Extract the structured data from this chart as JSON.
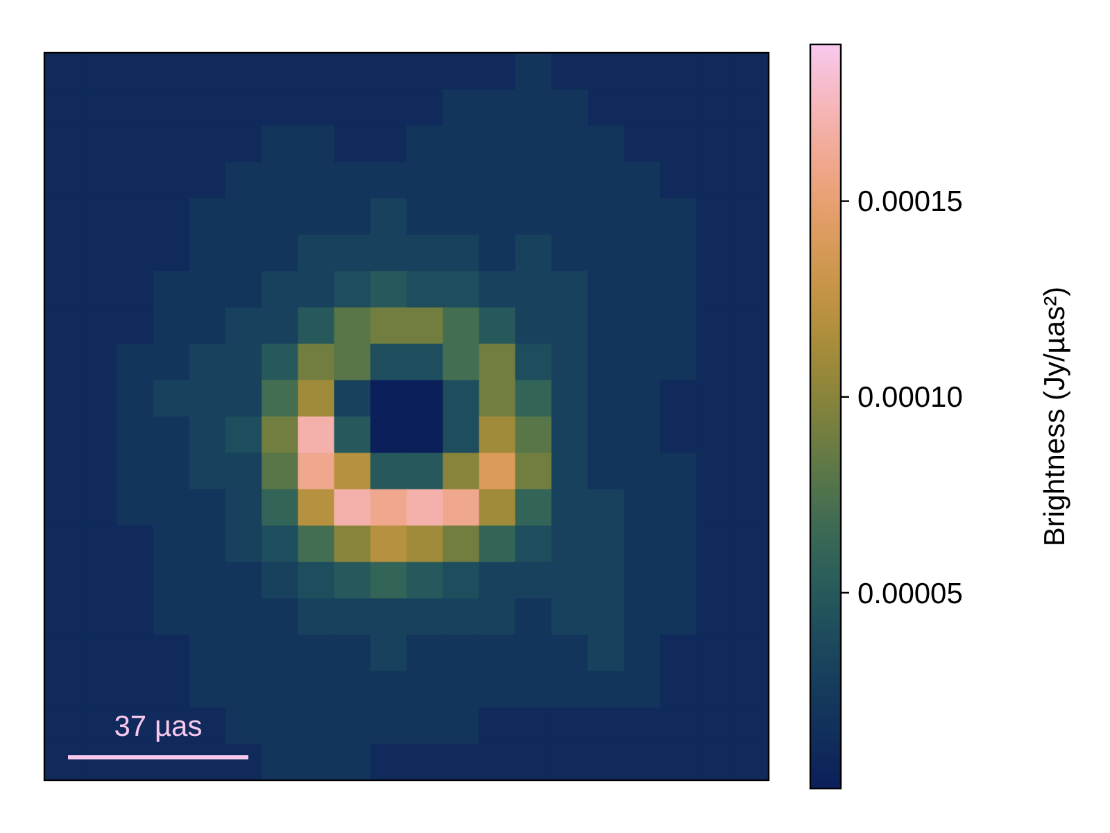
{
  "chart_data": {
    "type": "heatmap",
    "clabel": "Brightness (Jy/µas²)",
    "categories": [
      null,
      null,
      null,
      null,
      null,
      null,
      null,
      null,
      null,
      null,
      null,
      null,
      null,
      null,
      null,
      null,
      null,
      null,
      null,
      null
    ],
    "y_categories": [
      null,
      null,
      null,
      null,
      null,
      null,
      null,
      null,
      null,
      null,
      null,
      null,
      null,
      null,
      null,
      null,
      null,
      null,
      null,
      null
    ],
    "clim": [
      0,
      0.00019
    ],
    "cticks": [
      {
        "value": 5e-05,
        "label": "0.00005"
      },
      {
        "value": 0.0001,
        "label": "0.00010"
      },
      {
        "value": 0.00015,
        "label": "0.00015"
      }
    ],
    "annotations": [
      "37 µas"
    ],
    "cells": [
      [
        1e-05,
        1e-05,
        1e-05,
        1e-05,
        1e-05,
        1e-05,
        1e-05,
        1e-05,
        1e-05,
        1e-05,
        1e-05,
        1e-05,
        1e-05,
        2e-05,
        1e-05,
        1e-05,
        1e-05,
        1e-05,
        1e-05,
        1e-05
      ],
      [
        1e-05,
        1e-05,
        1e-05,
        1e-05,
        1e-05,
        1e-05,
        1e-05,
        1e-05,
        1e-05,
        1e-05,
        1e-05,
        2e-05,
        2e-05,
        2e-05,
        2e-05,
        1e-05,
        1e-05,
        1e-05,
        1e-05,
        1e-05
      ],
      [
        1e-05,
        1e-05,
        1e-05,
        1e-05,
        1e-05,
        1e-05,
        2e-05,
        2e-05,
        1e-05,
        1e-05,
        2e-05,
        2e-05,
        2e-05,
        2e-05,
        2e-05,
        2e-05,
        1e-05,
        1e-05,
        1e-05,
        1e-05
      ],
      [
        1e-05,
        1e-05,
        1e-05,
        1e-05,
        1e-05,
        2e-05,
        2e-05,
        2e-05,
        2e-05,
        2e-05,
        2e-05,
        2e-05,
        2e-05,
        2e-05,
        2e-05,
        2e-05,
        2e-05,
        1e-05,
        1e-05,
        1e-05
      ],
      [
        1e-05,
        1e-05,
        1e-05,
        1e-05,
        2e-05,
        2e-05,
        2e-05,
        2e-05,
        2e-05,
        3e-05,
        2e-05,
        2e-05,
        2e-05,
        2e-05,
        2e-05,
        2e-05,
        2e-05,
        2e-05,
        1e-05,
        1e-05
      ],
      [
        1e-05,
        1e-05,
        1e-05,
        1e-05,
        2e-05,
        2e-05,
        2e-05,
        3e-05,
        3e-05,
        3e-05,
        3e-05,
        3e-05,
        2e-05,
        3e-05,
        2e-05,
        2e-05,
        2e-05,
        2e-05,
        1e-05,
        1e-05
      ],
      [
        1e-05,
        1e-05,
        1e-05,
        2e-05,
        2e-05,
        2e-05,
        3e-05,
        3e-05,
        4e-05,
        5e-05,
        4e-05,
        4e-05,
        3e-05,
        3e-05,
        3e-05,
        2e-05,
        2e-05,
        2e-05,
        1e-05,
        1e-05
      ],
      [
        1e-05,
        1e-05,
        1e-05,
        2e-05,
        2e-05,
        3e-05,
        3e-05,
        5e-05,
        8e-05,
        9e-05,
        9e-05,
        7e-05,
        5e-05,
        3e-05,
        3e-05,
        2e-05,
        2e-05,
        2e-05,
        1e-05,
        1e-05
      ],
      [
        1e-05,
        1e-05,
        2e-05,
        2e-05,
        3e-05,
        3e-05,
        5e-05,
        9e-05,
        8e-05,
        4e-05,
        4e-05,
        7e-05,
        9e-05,
        4e-05,
        3e-05,
        2e-05,
        2e-05,
        2e-05,
        1e-05,
        1e-05
      ],
      [
        1e-05,
        1e-05,
        2e-05,
        3e-05,
        3e-05,
        3e-05,
        7e-05,
        0.00011,
        3e-05,
        0,
        0,
        4e-05,
        9e-05,
        6e-05,
        3e-05,
        2e-05,
        2e-05,
        1e-05,
        1e-05,
        1e-05
      ],
      [
        1e-05,
        1e-05,
        2e-05,
        2e-05,
        3e-05,
        4e-05,
        9e-05,
        0.00017,
        5e-05,
        0,
        0,
        4e-05,
        0.00011,
        8e-05,
        3e-05,
        2e-05,
        2e-05,
        1e-05,
        1e-05,
        1e-05
      ],
      [
        1e-05,
        1e-05,
        2e-05,
        2e-05,
        3e-05,
        3e-05,
        8e-05,
        0.00016,
        0.00012,
        5e-05,
        5e-05,
        0.0001,
        0.00014,
        9e-05,
        3e-05,
        2e-05,
        2e-05,
        2e-05,
        1e-05,
        1e-05
      ],
      [
        1e-05,
        1e-05,
        2e-05,
        2e-05,
        2e-05,
        3e-05,
        6e-05,
        0.00012,
        0.00017,
        0.00016,
        0.00017,
        0.00016,
        0.00011,
        6e-05,
        3e-05,
        3e-05,
        2e-05,
        2e-05,
        1e-05,
        1e-05
      ],
      [
        1e-05,
        1e-05,
        1e-05,
        2e-05,
        2e-05,
        3e-05,
        4e-05,
        7e-05,
        0.0001,
        0.00012,
        0.00011,
        9e-05,
        6e-05,
        4e-05,
        3e-05,
        3e-05,
        2e-05,
        2e-05,
        1e-05,
        1e-05
      ],
      [
        1e-05,
        1e-05,
        1e-05,
        2e-05,
        2e-05,
        2e-05,
        3e-05,
        4e-05,
        5e-05,
        6e-05,
        5e-05,
        4e-05,
        3e-05,
        3e-05,
        3e-05,
        3e-05,
        2e-05,
        2e-05,
        1e-05,
        1e-05
      ],
      [
        1e-05,
        1e-05,
        1e-05,
        2e-05,
        2e-05,
        2e-05,
        2e-05,
        3e-05,
        3e-05,
        3e-05,
        3e-05,
        3e-05,
        3e-05,
        2e-05,
        3e-05,
        3e-05,
        2e-05,
        2e-05,
        1e-05,
        1e-05
      ],
      [
        1e-05,
        1e-05,
        1e-05,
        1e-05,
        2e-05,
        2e-05,
        2e-05,
        2e-05,
        2e-05,
        3e-05,
        2e-05,
        2e-05,
        2e-05,
        2e-05,
        2e-05,
        3e-05,
        2e-05,
        1e-05,
        1e-05,
        1e-05
      ],
      [
        1e-05,
        1e-05,
        1e-05,
        1e-05,
        2e-05,
        2e-05,
        2e-05,
        2e-05,
        2e-05,
        2e-05,
        2e-05,
        2e-05,
        2e-05,
        2e-05,
        2e-05,
        2e-05,
        2e-05,
        1e-05,
        1e-05,
        1e-05
      ],
      [
        1e-05,
        1e-05,
        1e-05,
        1e-05,
        1e-05,
        2e-05,
        2e-05,
        2e-05,
        2e-05,
        2e-05,
        2e-05,
        2e-05,
        1e-05,
        1e-05,
        1e-05,
        1e-05,
        1e-05,
        1e-05,
        1e-05,
        1e-05
      ],
      [
        1e-05,
        1e-05,
        1e-05,
        1e-05,
        1e-05,
        1e-05,
        2e-05,
        2e-05,
        2e-05,
        1e-05,
        1e-05,
        1e-05,
        1e-05,
        1e-05,
        1e-05,
        1e-05,
        1e-05,
        1e-05,
        1e-05,
        1e-05
      ]
    ]
  }
}
